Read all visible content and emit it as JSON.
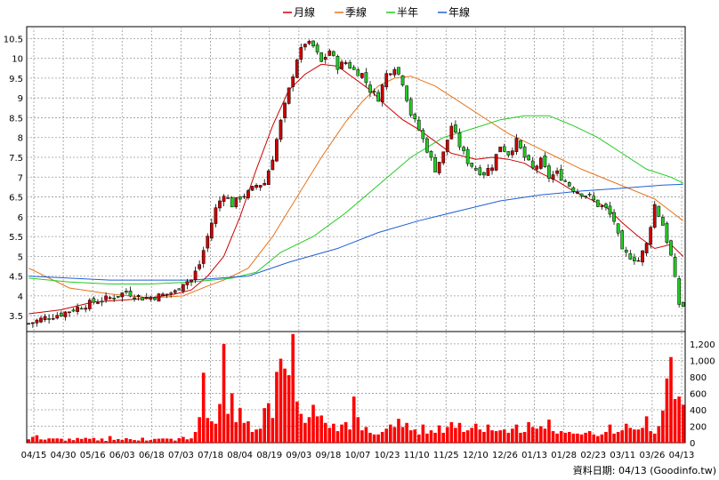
{
  "chart_data": {
    "type": "candlestick",
    "legend": [
      {
        "name": "月線",
        "color": "#cc0000"
      },
      {
        "name": "季線",
        "color": "#e8731a"
      },
      {
        "name": "半年",
        "color": "#22cc22"
      },
      {
        "name": "年線",
        "color": "#1f5fd6"
      }
    ],
    "price_axis": {
      "ticks": [
        "3.5",
        "4",
        "4.5",
        "5",
        "5.5",
        "6",
        "6.5",
        "7",
        "7.5",
        "8",
        "8.5",
        "9",
        "9.5",
        "10",
        "10.5"
      ],
      "ylim": [
        3.1,
        10.8
      ]
    },
    "volume_axis": {
      "ticks": [
        "0",
        "200",
        "400",
        "600",
        "800",
        "1,000",
        "1,200"
      ],
      "ylim": [
        0,
        1350
      ]
    },
    "x_labels": [
      "04/15",
      "04/30",
      "05/16",
      "06/03",
      "06/18",
      "07/03",
      "07/18",
      "08/04",
      "08/19",
      "09/03",
      "09/18",
      "10/07",
      "10/23",
      "11/10",
      "11/25",
      "12/10",
      "12/26",
      "01/13",
      "01/28",
      "02/23",
      "03/11",
      "03/26",
      "04/13"
    ],
    "up_color": "#cc0000",
    "down_color": "#22cc22",
    "volume_color": "#ff0000",
    "ma_series": [
      {
        "name": "月線",
        "values": [
          [
            0,
            3.55
          ],
          [
            8,
            3.65
          ],
          [
            16,
            3.85
          ],
          [
            24,
            3.9
          ],
          [
            30,
            3.95
          ],
          [
            36,
            4.05
          ],
          [
            40,
            4.15
          ],
          [
            44,
            4.5
          ],
          [
            48,
            5.0
          ],
          [
            52,
            6.0
          ],
          [
            56,
            7.2
          ],
          [
            60,
            8.3
          ],
          [
            64,
            9.2
          ],
          [
            68,
            9.6
          ],
          [
            72,
            9.85
          ],
          [
            76,
            9.8
          ],
          [
            80,
            9.5
          ],
          [
            84,
            9.2
          ],
          [
            88,
            8.8
          ],
          [
            92,
            8.45
          ],
          [
            96,
            8.2
          ],
          [
            100,
            7.9
          ],
          [
            104,
            7.6
          ],
          [
            110,
            7.45
          ],
          [
            114,
            7.5
          ],
          [
            118,
            7.45
          ],
          [
            122,
            7.35
          ],
          [
            126,
            7.1
          ],
          [
            130,
            6.9
          ],
          [
            134,
            6.65
          ],
          [
            138,
            6.45
          ],
          [
            142,
            6.25
          ],
          [
            146,
            5.85
          ],
          [
            150,
            5.5
          ],
          [
            154,
            5.2
          ],
          [
            158,
            5.3
          ],
          [
            161,
            5.0
          ]
        ]
      },
      {
        "name": "季線",
        "values": [
          [
            0,
            4.7
          ],
          [
            10,
            4.2
          ],
          [
            20,
            4.05
          ],
          [
            30,
            3.95
          ],
          [
            38,
            4.0
          ],
          [
            44,
            4.25
          ],
          [
            48,
            4.4
          ],
          [
            54,
            4.7
          ],
          [
            60,
            5.5
          ],
          [
            66,
            6.5
          ],
          [
            72,
            7.5
          ],
          [
            78,
            8.4
          ],
          [
            82,
            8.9
          ],
          [
            86,
            9.3
          ],
          [
            90,
            9.5
          ],
          [
            94,
            9.55
          ],
          [
            100,
            9.3
          ],
          [
            106,
            8.9
          ],
          [
            112,
            8.5
          ],
          [
            118,
            8.1
          ],
          [
            124,
            7.8
          ],
          [
            130,
            7.5
          ],
          [
            136,
            7.2
          ],
          [
            142,
            6.95
          ],
          [
            148,
            6.7
          ],
          [
            154,
            6.45
          ],
          [
            161,
            5.9
          ]
        ]
      },
      {
        "name": "半年",
        "values": [
          [
            0,
            4.45
          ],
          [
            10,
            4.35
          ],
          [
            20,
            4.3
          ],
          [
            30,
            4.3
          ],
          [
            40,
            4.35
          ],
          [
            50,
            4.45
          ],
          [
            56,
            4.6
          ],
          [
            62,
            5.1
          ],
          [
            70,
            5.5
          ],
          [
            78,
            6.1
          ],
          [
            86,
            6.8
          ],
          [
            94,
            7.5
          ],
          [
            102,
            8.0
          ],
          [
            110,
            8.25
          ],
          [
            116,
            8.45
          ],
          [
            122,
            8.55
          ],
          [
            128,
            8.55
          ],
          [
            134,
            8.3
          ],
          [
            140,
            8.0
          ],
          [
            146,
            7.6
          ],
          [
            152,
            7.2
          ],
          [
            158,
            7.0
          ],
          [
            161,
            6.85
          ]
        ]
      },
      {
        "name": "年線",
        "values": [
          [
            0,
            4.5
          ],
          [
            20,
            4.4
          ],
          [
            40,
            4.4
          ],
          [
            54,
            4.5
          ],
          [
            64,
            4.85
          ],
          [
            76,
            5.2
          ],
          [
            86,
            5.6
          ],
          [
            96,
            5.9
          ],
          [
            106,
            6.15
          ],
          [
            116,
            6.4
          ],
          [
            126,
            6.55
          ],
          [
            136,
            6.65
          ],
          [
            146,
            6.72
          ],
          [
            156,
            6.8
          ],
          [
            161,
            6.82
          ]
        ]
      }
    ],
    "price_path_points": [
      [
        0,
        3.3
      ],
      [
        4,
        3.45
      ],
      [
        8,
        3.55
      ],
      [
        12,
        3.7
      ],
      [
        16,
        3.85
      ],
      [
        20,
        3.95
      ],
      [
        24,
        4.1
      ],
      [
        28,
        3.95
      ],
      [
        32,
        4.0
      ],
      [
        36,
        4.1
      ],
      [
        38,
        4.35
      ],
      [
        40,
        4.4
      ],
      [
        42,
        4.8
      ],
      [
        44,
        5.5
      ],
      [
        46,
        6.2
      ],
      [
        48,
        6.6
      ],
      [
        50,
        6.3
      ],
      [
        52,
        6.5
      ],
      [
        54,
        6.6
      ],
      [
        56,
        6.8
      ],
      [
        58,
        6.85
      ],
      [
        60,
        7.5
      ],
      [
        62,
        8.4
      ],
      [
        64,
        9.2
      ],
      [
        66,
        10.0
      ],
      [
        68,
        10.4
      ],
      [
        70,
        10.3
      ],
      [
        72,
        9.9
      ],
      [
        74,
        10.2
      ],
      [
        76,
        9.8
      ],
      [
        78,
        9.9
      ],
      [
        80,
        9.7
      ],
      [
        82,
        9.6
      ],
      [
        84,
        9.2
      ],
      [
        86,
        9.0
      ],
      [
        88,
        9.6
      ],
      [
        90,
        9.8
      ],
      [
        92,
        9.4
      ],
      [
        94,
        8.6
      ],
      [
        96,
        8.2
      ],
      [
        98,
        7.7
      ],
      [
        100,
        7.2
      ],
      [
        102,
        7.6
      ],
      [
        104,
        8.3
      ],
      [
        106,
        7.8
      ],
      [
        108,
        7.4
      ],
      [
        110,
        7.2
      ],
      [
        112,
        7.1
      ],
      [
        114,
        7.3
      ],
      [
        116,
        7.8
      ],
      [
        118,
        7.6
      ],
      [
        120,
        7.9
      ],
      [
        122,
        7.5
      ],
      [
        124,
        7.2
      ],
      [
        126,
        7.4
      ],
      [
        128,
        7.0
      ],
      [
        130,
        7.1
      ],
      [
        132,
        6.9
      ],
      [
        134,
        6.7
      ],
      [
        136,
        6.6
      ],
      [
        138,
        6.5
      ],
      [
        140,
        6.3
      ],
      [
        142,
        6.2
      ],
      [
        144,
        5.9
      ],
      [
        146,
        5.1
      ],
      [
        148,
        5.0
      ],
      [
        150,
        4.9
      ],
      [
        152,
        5.3
      ],
      [
        154,
        6.3
      ],
      [
        156,
        5.8
      ],
      [
        158,
        5.0
      ],
      [
        160,
        3.8
      ],
      [
        161,
        3.75
      ]
    ],
    "volume_spikes": [
      [
        1,
        70
      ],
      [
        2,
        90
      ],
      [
        3,
        40
      ],
      [
        20,
        80
      ],
      [
        28,
        60
      ],
      [
        38,
        70
      ],
      [
        41,
        130
      ],
      [
        42,
        310
      ],
      [
        43,
        850
      ],
      [
        44,
        300
      ],
      [
        45,
        260
      ],
      [
        46,
        230
      ],
      [
        47,
        470
      ],
      [
        48,
        1200
      ],
      [
        49,
        350
      ],
      [
        50,
        600
      ],
      [
        51,
        250
      ],
      [
        52,
        420
      ],
      [
        53,
        240
      ],
      [
        54,
        260
      ],
      [
        55,
        130
      ],
      [
        56,
        160
      ],
      [
        57,
        170
      ],
      [
        58,
        420
      ],
      [
        59,
        480
      ],
      [
        60,
        300
      ],
      [
        61,
        860
      ],
      [
        62,
        1020
      ],
      [
        63,
        900
      ],
      [
        64,
        820
      ],
      [
        65,
        1320
      ],
      [
        66,
        500
      ],
      [
        67,
        350
      ],
      [
        68,
        240
      ],
      [
        69,
        310
      ],
      [
        70,
        460
      ],
      [
        71,
        320
      ],
      [
        72,
        330
      ],
      [
        73,
        240
      ],
      [
        74,
        180
      ],
      [
        75,
        230
      ],
      [
        76,
        140
      ],
      [
        77,
        220
      ],
      [
        78,
        250
      ],
      [
        79,
        160
      ],
      [
        80,
        560
      ],
      [
        81,
        310
      ],
      [
        82,
        150
      ],
      [
        83,
        190
      ],
      [
        84,
        120
      ],
      [
        85,
        100
      ],
      [
        86,
        100
      ],
      [
        87,
        130
      ],
      [
        88,
        170
      ],
      [
        89,
        220
      ],
      [
        90,
        190
      ],
      [
        91,
        290
      ],
      [
        92,
        190
      ],
      [
        93,
        240
      ],
      [
        94,
        150
      ],
      [
        95,
        160
      ],
      [
        96,
        100
      ],
      [
        97,
        220
      ],
      [
        98,
        110
      ],
      [
        99,
        150
      ],
      [
        100,
        120
      ],
      [
        101,
        210
      ],
      [
        102,
        120
      ],
      [
        103,
        190
      ],
      [
        104,
        250
      ],
      [
        105,
        180
      ],
      [
        106,
        240
      ],
      [
        107,
        130
      ],
      [
        108,
        150
      ],
      [
        109,
        180
      ],
      [
        110,
        230
      ],
      [
        111,
        160
      ],
      [
        112,
        130
      ],
      [
        113,
        220
      ],
      [
        114,
        150
      ],
      [
        115,
        140
      ],
      [
        116,
        150
      ],
      [
        117,
        160
      ],
      [
        118,
        120
      ],
      [
        119,
        170
      ],
      [
        120,
        220
      ],
      [
        121,
        120
      ],
      [
        122,
        130
      ],
      [
        123,
        250
      ],
      [
        124,
        190
      ],
      [
        125,
        170
      ],
      [
        126,
        200
      ],
      [
        127,
        170
      ],
      [
        128,
        280
      ],
      [
        129,
        140
      ],
      [
        130,
        110
      ],
      [
        131,
        140
      ],
      [
        132,
        120
      ],
      [
        133,
        130
      ],
      [
        134,
        110
      ],
      [
        135,
        110
      ],
      [
        136,
        100
      ],
      [
        137,
        120
      ],
      [
        138,
        140
      ],
      [
        139,
        100
      ],
      [
        140,
        80
      ],
      [
        141,
        100
      ],
      [
        142,
        130
      ],
      [
        143,
        220
      ],
      [
        144,
        110
      ],
      [
        145,
        130
      ],
      [
        146,
        150
      ],
      [
        147,
        230
      ],
      [
        148,
        180
      ],
      [
        149,
        160
      ],
      [
        150,
        160
      ],
      [
        151,
        180
      ],
      [
        152,
        320
      ],
      [
        153,
        140
      ],
      [
        154,
        110
      ],
      [
        155,
        200
      ],
      [
        156,
        390
      ],
      [
        157,
        780
      ],
      [
        158,
        1040
      ],
      [
        159,
        530
      ],
      [
        160,
        560
      ],
      [
        161,
        460
      ]
    ]
  },
  "source_text": "資料日期: 04/13 (Goodinfo.tw)"
}
